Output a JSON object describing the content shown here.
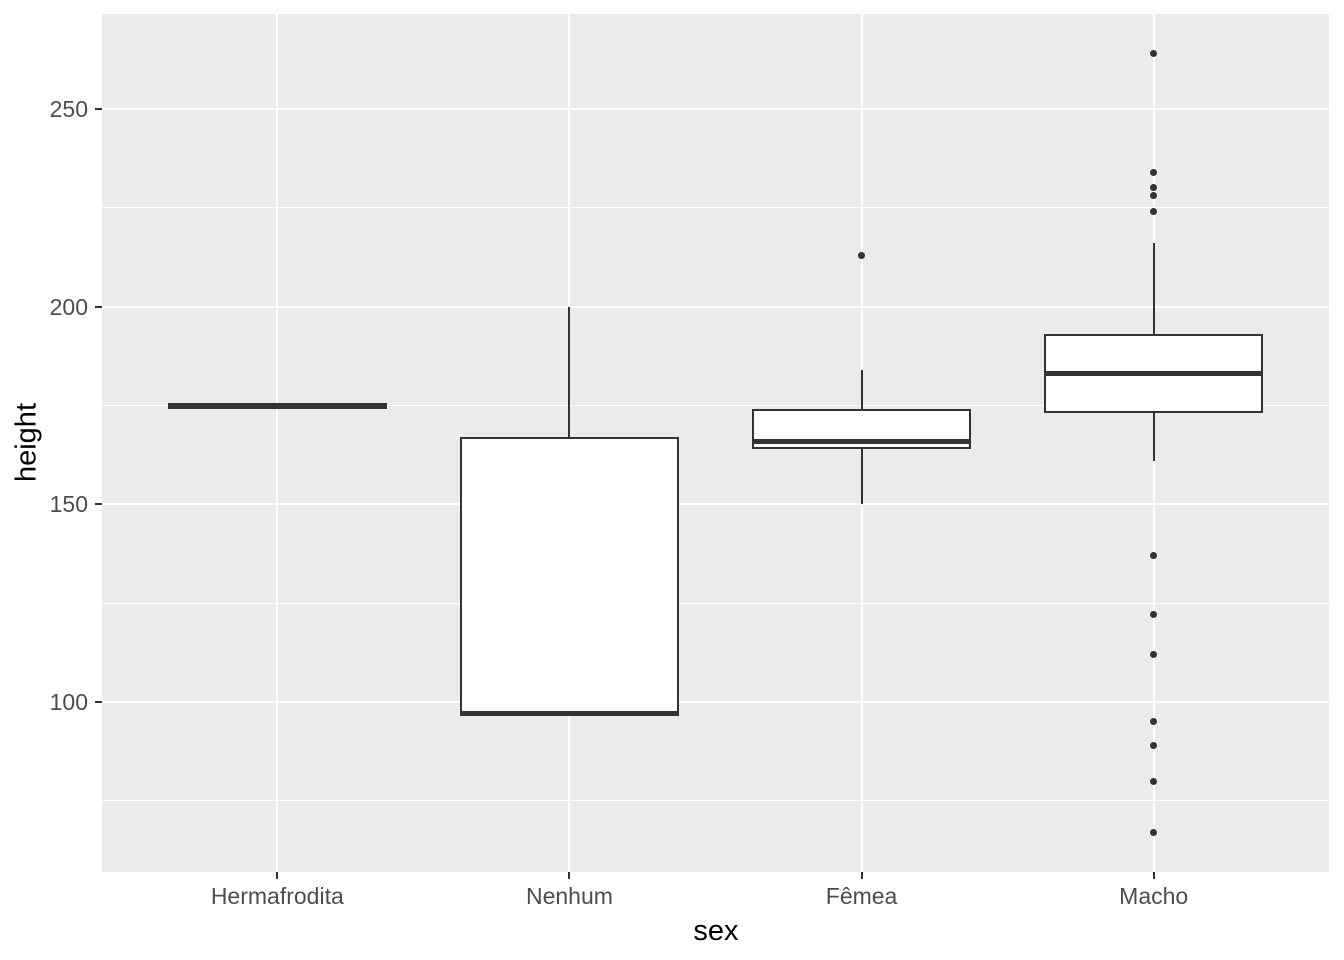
{
  "chart_data": {
    "type": "boxplot",
    "title": "",
    "xlabel": "sex",
    "ylabel": "height",
    "categories": [
      "Hermafrodita",
      "Nenhum",
      "Fêmea",
      "Macho"
    ],
    "y_axis": {
      "ticks": [
        100,
        150,
        200,
        250
      ],
      "tick_labels": [
        "100",
        "150",
        "200",
        "250"
      ],
      "minor_ticks": [
        75,
        125,
        175,
        225
      ],
      "ylim": [
        57,
        274
      ],
      "grid": "on",
      "legend": "none"
    },
    "series": [
      {
        "category": "Hermafrodita",
        "slug": "hermafrodita",
        "min": 175,
        "q1": 175,
        "median": 175,
        "q3": 175,
        "max": 175,
        "outliers": []
      },
      {
        "category": "Nenhum",
        "slug": "nenhum",
        "min": 97,
        "q1": 97,
        "median": 97,
        "q3": 167,
        "max": 200,
        "outliers": []
      },
      {
        "category": "Fêmea",
        "slug": "femea",
        "min": 150,
        "q1": 164,
        "median": 166,
        "q3": 174,
        "max": 184,
        "outliers": [
          213
        ]
      },
      {
        "category": "Macho",
        "slug": "macho",
        "min": 161,
        "q1": 173,
        "median": 183,
        "q3": 193,
        "max": 216,
        "outliers": [
          264,
          234,
          230,
          228,
          224,
          137,
          122,
          112,
          95,
          89,
          80,
          67
        ]
      }
    ],
    "colors": {
      "panel_bg": "#EBEBEB",
      "grid": "#FFFFFF",
      "box_border": "#333333",
      "box_fill": "#FFFFFF",
      "median": "#333333",
      "outlier": "#333333",
      "tick_mark": "#333333",
      "tick_label": "#4D4D4D",
      "axis_title": "#000000"
    }
  }
}
